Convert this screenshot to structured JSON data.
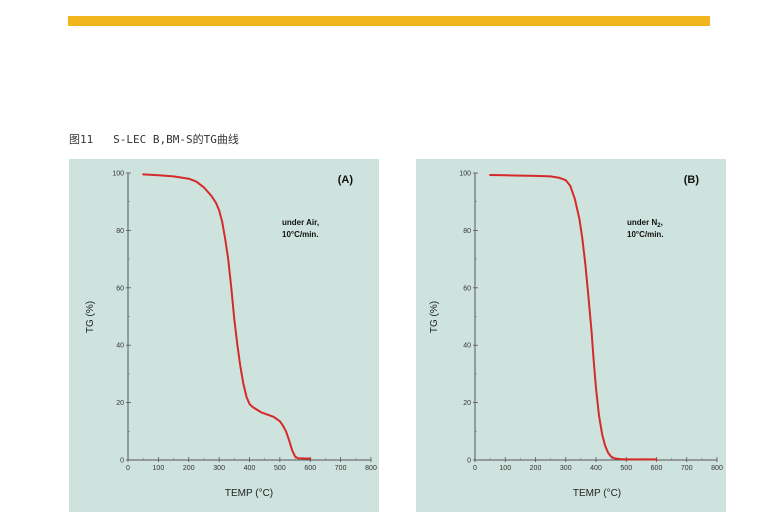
{
  "header": {
    "accent_color": "#f2b51e",
    "caption": "图11   S-LEC B,BM-S的TG曲线"
  },
  "style": {
    "panel_color": "#cfe3de",
    "line_color": "#d42a2a"
  },
  "chart_data": [
    {
      "type": "line",
      "panel_label": "(A)",
      "condition_line1": "under Air,",
      "condition_line2": "10°C/min.",
      "xlabel": "TEMP (°C)",
      "ylabel": "TG (%)",
      "xlim": [
        0,
        800
      ],
      "ylim": [
        0,
        100
      ],
      "xticks": [
        0,
        100,
        200,
        300,
        400,
        500,
        600,
        700,
        800
      ],
      "yticks": [
        0,
        20,
        40,
        60,
        80,
        100
      ],
      "x_tick_labels": [
        "0",
        "100",
        "200",
        "300",
        "400",
        "500",
        "600",
        "700",
        "800"
      ],
      "y_tick_labels": [
        "0",
        "20",
        "40",
        "60",
        "80",
        "100"
      ],
      "grid": false,
      "series": [
        {
          "x": [
            50,
            100,
            150,
            200,
            225,
            250,
            275,
            290,
            300,
            310,
            320,
            330,
            340,
            350,
            360,
            370,
            380,
            390,
            400,
            410,
            420,
            440,
            460,
            480,
            500,
            510,
            520,
            530,
            540,
            550,
            560,
            600
          ],
          "y": [
            99.5,
            99.2,
            98.8,
            98.0,
            97.0,
            95.0,
            92.0,
            89.5,
            87.0,
            83.0,
            77.0,
            70.0,
            60.0,
            49.0,
            40.0,
            32.5,
            26.5,
            22.0,
            19.5,
            18.5,
            17.8,
            16.5,
            15.8,
            15.0,
            13.5,
            12.0,
            10.0,
            7.0,
            3.5,
            1.2,
            0.6,
            0.5
          ]
        }
      ]
    },
    {
      "type": "line",
      "panel_label": "(B)",
      "condition_line1": "under N",
      "condition_sub": "2",
      "condition_after": ",",
      "condition_line2": "10°C/min.",
      "xlabel": "TEMP (°C)",
      "ylabel": "TG (%)",
      "xlim": [
        0,
        800
      ],
      "ylim": [
        0,
        100
      ],
      "xticks": [
        0,
        100,
        200,
        300,
        400,
        500,
        600,
        700,
        800
      ],
      "yticks": [
        0,
        20,
        40,
        60,
        80,
        100
      ],
      "x_tick_labels": [
        "0",
        "100",
        "200",
        "300",
        "400",
        "500",
        "600",
        "700",
        "800"
      ],
      "y_tick_labels": [
        "0",
        "20",
        "40",
        "60",
        "80",
        "100"
      ],
      "grid": false,
      "series": [
        {
          "x": [
            50,
            100,
            150,
            200,
            250,
            280,
            300,
            315,
            330,
            345,
            355,
            365,
            375,
            385,
            392,
            400,
            410,
            420,
            430,
            440,
            450,
            460,
            480,
            500,
            550,
            600
          ],
          "y": [
            99.3,
            99.2,
            99.1,
            99.0,
            98.8,
            98.3,
            97.5,
            95.5,
            91.0,
            84.0,
            77.0,
            68.0,
            57.0,
            45.0,
            35.0,
            25.0,
            15.5,
            9.0,
            5.0,
            2.5,
            1.2,
            0.6,
            0.3,
            0.2,
            0.2,
            0.2
          ]
        }
      ]
    }
  ]
}
